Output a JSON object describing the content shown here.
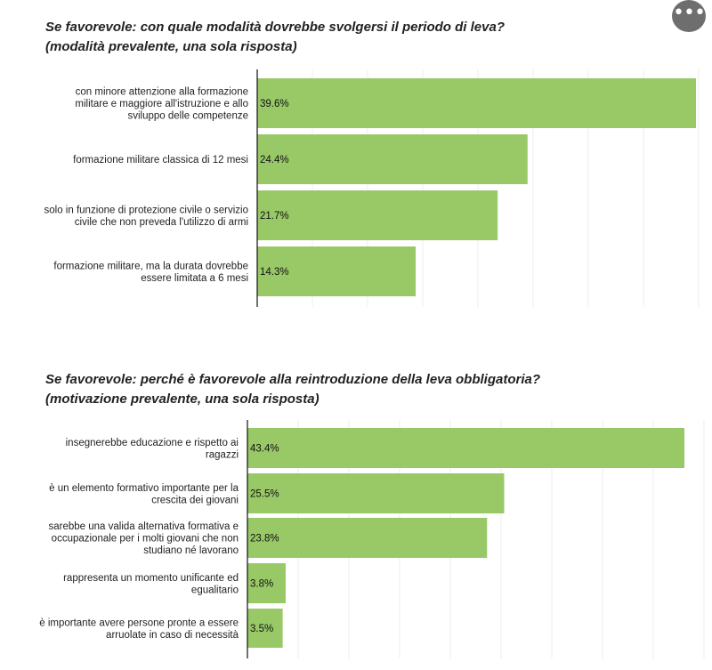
{
  "menu": {
    "more_icon": "more-dots-icon",
    "more_label": "•••"
  },
  "colors": {
    "bar": "#99c867",
    "axis": "#111111",
    "grid": "#ececec"
  },
  "chart_data": [
    {
      "type": "bar",
      "orientation": "horizontal",
      "title_line1": "Se favorevole: con quale modalità dovrebbe svolgersi il periodo di leva?",
      "title_line2": "(modalità prevalente, una sola risposta)",
      "unit": "%",
      "xlim": [
        0,
        40
      ],
      "grid": true,
      "categories": [
        [
          "con minore attenzione alla formazione",
          "militare e maggiore all'istruzione e allo",
          "sviluppo delle competenze"
        ],
        [
          "formazione militare classica di 12 mesi"
        ],
        [
          "solo in funzione di protezione civile o servizio",
          "civile che non preveda l'utilizzo di armi"
        ],
        [
          "formazione militare, ma la durata dovrebbe",
          "essere limitata a 6 mesi"
        ]
      ],
      "values": [
        39.6,
        24.4,
        21.7,
        14.3
      ],
      "value_labels": [
        "39.6%",
        "24.4%",
        "21.7%",
        "14.3%"
      ]
    },
    {
      "type": "bar",
      "orientation": "horizontal",
      "title_line1": "Se favorevole: perché è favorevole alla reintroduzione della leva obbligatoria?",
      "title_line2": "(motivazione prevalente, una sola risposta)",
      "unit": "%",
      "xlim": [
        0,
        45
      ],
      "grid": true,
      "categories": [
        [
          "insegnerebbe educazione e rispetto ai",
          "ragazzi"
        ],
        [
          "è un elemento formativo importante per la",
          "crescita dei giovani"
        ],
        [
          "sarebbe una valida alternativa formativa e",
          "occupazionale per i molti giovani che non",
          "studiano né lavorano"
        ],
        [
          "rappresenta un momento unificante ed",
          "egualitario"
        ],
        [
          "è importante avere persone pronte a essere",
          "arruolate in caso di necessità"
        ]
      ],
      "values": [
        43.4,
        25.5,
        23.8,
        3.8,
        3.5
      ],
      "value_labels": [
        "43.4%",
        "25.5%",
        "23.8%",
        "3.8%",
        "3.5%"
      ]
    }
  ]
}
